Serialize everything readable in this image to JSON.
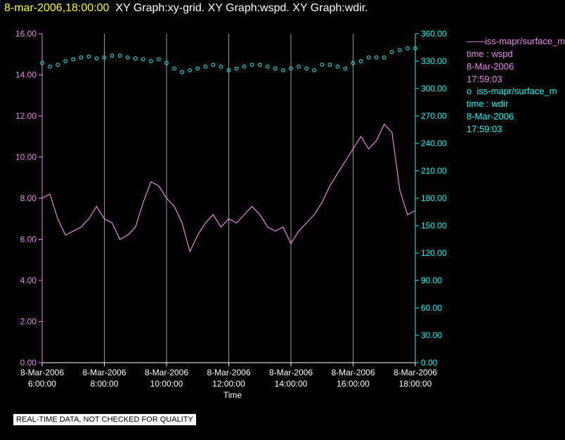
{
  "header": {
    "timestamp": "8-mar-2006,18:00:00",
    "graphs": "XY Graph:xy-grid.  XY Graph:wspd.  XY Graph:wdir."
  },
  "legend": {
    "wspd": {
      "marker": "——",
      "source": "iss-mapr/surface_m",
      "var": "time : wspd",
      "date": "8-Mar-2006",
      "time": "17:59:03"
    },
    "wdir": {
      "marker": "o",
      "source": "iss-mapr/surface_m",
      "var": "time : wdir",
      "date": "8-Mar-2006",
      "time": "17:59:03"
    }
  },
  "disclaimer": "REAL-TIME DATA, NOT CHECKED FOR QUALITY",
  "colors": {
    "wspd": "#ee82ee",
    "wdir": "#00ffff",
    "grid": "#9a9a9a",
    "axis": "#ffffff"
  },
  "chart_data": {
    "type": "line",
    "xlabel": "Time",
    "x_ticks": [
      {
        "date": "8-Mar-2006",
        "time": "6:00:00"
      },
      {
        "date": "8-Mar-2006",
        "time": "8:00:00"
      },
      {
        "date": "8-Mar-2006",
        "time": "10:00:00"
      },
      {
        "date": "8-Mar-2006",
        "time": "12:00:00"
      },
      {
        "date": "8-Mar-2006",
        "time": "14:00:00"
      },
      {
        "date": "8-Mar-2006",
        "time": "16:00:00"
      },
      {
        "date": "8-Mar-2006",
        "time": "18:00:00"
      }
    ],
    "xlim": [
      "6:00:00",
      "18:00:00"
    ],
    "y_left": {
      "ylim": [
        0,
        16
      ],
      "ticks": [
        "0.00",
        "2.00",
        "4.00",
        "6.00",
        "8.00",
        "10.00",
        "12.00",
        "14.00",
        "16.00"
      ]
    },
    "y_right": {
      "ylim": [
        0,
        360
      ],
      "ticks": [
        "0.00",
        "30.00",
        "60.00",
        "90.00",
        "120.00",
        "150.00",
        "180.00",
        "210.00",
        "240.00",
        "270.00",
        "300.00",
        "330.00",
        "360.00"
      ]
    },
    "grid": "vertical",
    "series": [
      {
        "axis": "left",
        "style": "line",
        "time": [
          "6:00",
          "6:15",
          "6:30",
          "6:45",
          "7:00",
          "7:15",
          "7:30",
          "7:45",
          "8:00",
          "8:15",
          "8:30",
          "8:45",
          "9:00",
          "9:15",
          "9:30",
          "9:45",
          "10:00",
          "10:15",
          "10:30",
          "10:45",
          "11:00",
          "11:15",
          "11:30",
          "11:45",
          "12:00",
          "12:15",
          "12:30",
          "12:45",
          "13:00",
          "13:15",
          "13:30",
          "13:45",
          "14:00",
          "14:15",
          "14:30",
          "14:45",
          "15:00",
          "15:15",
          "15:30",
          "15:45",
          "16:00",
          "16:15",
          "16:30",
          "16:45",
          "17:00",
          "17:15",
          "17:30",
          "17:45",
          "18:00"
        ],
        "values": [
          8.0,
          8.2,
          7.0,
          6.2,
          6.4,
          6.6,
          7.0,
          7.6,
          7.0,
          6.8,
          6.0,
          6.2,
          6.6,
          7.8,
          8.8,
          8.6,
          8.0,
          7.6,
          6.8,
          5.4,
          6.2,
          6.8,
          7.2,
          6.6,
          7.0,
          6.8,
          7.2,
          7.6,
          7.2,
          6.6,
          6.4,
          6.6,
          5.8,
          6.4,
          6.8,
          7.2,
          7.8,
          8.6,
          9.2,
          9.8,
          10.4,
          11.0,
          10.4,
          10.8,
          11.6,
          11.2,
          8.4,
          7.2,
          7.4
        ]
      },
      {
        "axis": "right",
        "style": "markers",
        "time": [
          "6:00",
          "6:15",
          "6:30",
          "6:45",
          "7:00",
          "7:15",
          "7:30",
          "7:45",
          "8:00",
          "8:15",
          "8:30",
          "8:45",
          "9:00",
          "9:15",
          "9:30",
          "9:45",
          "10:00",
          "10:15",
          "10:30",
          "10:45",
          "11:00",
          "11:15",
          "11:30",
          "11:45",
          "12:00",
          "12:15",
          "12:30",
          "12:45",
          "13:00",
          "13:15",
          "13:30",
          "13:45",
          "14:00",
          "14:15",
          "14:30",
          "14:45",
          "15:00",
          "15:15",
          "15:30",
          "15:45",
          "16:00",
          "16:15",
          "16:30",
          "16:45",
          "17:00",
          "17:15",
          "17:30",
          "17:45",
          "18:00"
        ],
        "values": [
          328,
          324,
          326,
          330,
          332,
          334,
          335,
          333,
          334,
          336,
          336,
          334,
          333,
          332,
          330,
          332,
          328,
          322,
          318,
          320,
          322,
          324,
          326,
          324,
          320,
          322,
          324,
          326,
          326,
          324,
          322,
          320,
          322,
          324,
          322,
          320,
          326,
          326,
          324,
          322,
          328,
          330,
          334,
          334,
          334,
          340,
          342,
          344,
          344
        ]
      }
    ]
  }
}
